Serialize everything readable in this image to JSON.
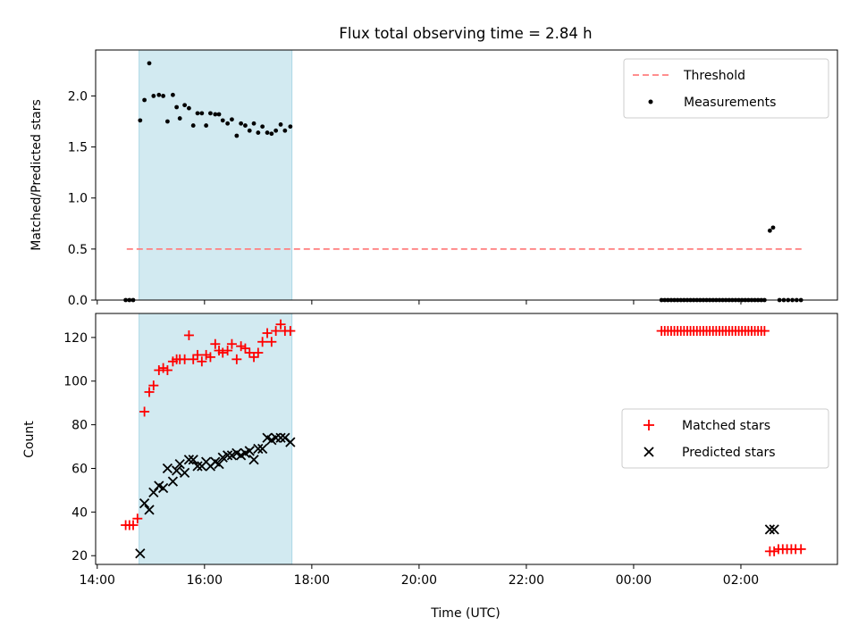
{
  "chart_data": [
    {
      "type": "scatter",
      "title": "Flux total observing time = 2.84 h",
      "xlabel": "",
      "ylabel": "Matched/Predicted stars",
      "x_unit": "hours since 00:00 of first day",
      "xlim": [
        13.97,
        27.8
      ],
      "ylim": [
        0,
        2.45
      ],
      "yticks": [
        "0.0",
        "0.5",
        "1.0",
        "1.5",
        "2.0"
      ],
      "ytick_values": [
        0,
        0.5,
        1.0,
        1.5,
        2.0
      ],
      "span": [
        14.78,
        17.63
      ],
      "span_color": "#add8e6",
      "legend_position": "upper-right",
      "threshold": {
        "name": "Threshold",
        "y": 0.5,
        "x_range": [
          14.55,
          27.15
        ],
        "color": "#ff7f7f"
      },
      "series": [
        {
          "name": "Measurements",
          "color": "#000000",
          "points": [
            [
              14.53,
              0
            ],
            [
              14.6,
              0
            ],
            [
              14.67,
              0
            ],
            [
              14.8,
              1.76
            ],
            [
              14.88,
              1.96
            ],
            [
              14.97,
              2.32
            ],
            [
              15.05,
              2.0
            ],
            [
              15.15,
              2.01
            ],
            [
              15.23,
              2.0
            ],
            [
              15.31,
              1.75
            ],
            [
              15.41,
              2.01
            ],
            [
              15.48,
              1.89
            ],
            [
              15.54,
              1.78
            ],
            [
              15.63,
              1.91
            ],
            [
              15.71,
              1.88
            ],
            [
              15.79,
              1.71
            ],
            [
              15.87,
              1.83
            ],
            [
              15.95,
              1.83
            ],
            [
              16.03,
              1.71
            ],
            [
              16.11,
              1.83
            ],
            [
              16.2,
              1.82
            ],
            [
              16.27,
              1.82
            ],
            [
              16.34,
              1.76
            ],
            [
              16.43,
              1.73
            ],
            [
              16.51,
              1.77
            ],
            [
              16.6,
              1.61
            ],
            [
              16.68,
              1.73
            ],
            [
              16.76,
              1.71
            ],
            [
              16.84,
              1.66
            ],
            [
              16.92,
              1.73
            ],
            [
              17.0,
              1.64
            ],
            [
              17.08,
              1.7
            ],
            [
              17.17,
              1.64
            ],
            [
              17.25,
              1.63
            ],
            [
              17.33,
              1.66
            ],
            [
              17.42,
              1.72
            ],
            [
              17.5,
              1.66
            ],
            [
              17.6,
              1.7
            ],
            [
              24.52,
              0
            ],
            [
              24.58,
              0
            ],
            [
              24.64,
              0
            ],
            [
              24.7,
              0
            ],
            [
              24.76,
              0
            ],
            [
              24.82,
              0
            ],
            [
              24.88,
              0
            ],
            [
              24.94,
              0
            ],
            [
              25.0,
              0
            ],
            [
              25.06,
              0
            ],
            [
              25.12,
              0
            ],
            [
              25.18,
              0
            ],
            [
              25.24,
              0
            ],
            [
              25.3,
              0
            ],
            [
              25.36,
              0
            ],
            [
              25.42,
              0
            ],
            [
              25.48,
              0
            ],
            [
              25.54,
              0
            ],
            [
              25.6,
              0
            ],
            [
              25.66,
              0
            ],
            [
              25.72,
              0
            ],
            [
              25.78,
              0
            ],
            [
              25.84,
              0
            ],
            [
              25.9,
              0
            ],
            [
              25.96,
              0
            ],
            [
              26.02,
              0
            ],
            [
              26.08,
              0
            ],
            [
              26.14,
              0
            ],
            [
              26.2,
              0
            ],
            [
              26.26,
              0
            ],
            [
              26.32,
              0
            ],
            [
              26.38,
              0
            ],
            [
              26.44,
              0
            ],
            [
              26.54,
              0.68
            ],
            [
              26.6,
              0.71
            ],
            [
              26.72,
              0
            ],
            [
              26.8,
              0
            ],
            [
              26.88,
              0
            ],
            [
              26.96,
              0
            ],
            [
              27.04,
              0
            ],
            [
              27.12,
              0
            ]
          ]
        }
      ]
    },
    {
      "type": "scatter",
      "title": "",
      "xlabel": "Time (UTC)",
      "ylabel": "Count",
      "x_unit": "hours since 00:00 of first day",
      "xlim": [
        13.97,
        27.8
      ],
      "ylim": [
        16,
        131
      ],
      "yticks": [
        "20",
        "40",
        "60",
        "80",
        "100",
        "120"
      ],
      "ytick_values": [
        20,
        40,
        60,
        80,
        100,
        120
      ],
      "xticks": [
        "14:00",
        "16:00",
        "18:00",
        "20:00",
        "22:00",
        "00:00",
        "02:00"
      ],
      "xtick_values": [
        14,
        16,
        18,
        20,
        22,
        24,
        26
      ],
      "span": [
        14.78,
        17.63
      ],
      "span_color": "#add8e6",
      "legend_position": "center-right",
      "series": [
        {
          "name": "Matched stars",
          "marker": "plus",
          "color": "#ff0000",
          "points": [
            [
              14.53,
              34
            ],
            [
              14.6,
              34
            ],
            [
              14.67,
              34
            ],
            [
              14.75,
              37
            ],
            [
              14.88,
              86
            ],
            [
              14.97,
              95
            ],
            [
              15.05,
              98
            ],
            [
              15.15,
              105
            ],
            [
              15.23,
              106
            ],
            [
              15.31,
              105
            ],
            [
              15.41,
              109
            ],
            [
              15.48,
              110
            ],
            [
              15.54,
              110
            ],
            [
              15.63,
              110
            ],
            [
              15.71,
              121
            ],
            [
              15.79,
              110
            ],
            [
              15.87,
              112
            ],
            [
              15.95,
              109
            ],
            [
              16.03,
              112
            ],
            [
              16.11,
              111
            ],
            [
              16.2,
              117
            ],
            [
              16.27,
              114
            ],
            [
              16.34,
              113
            ],
            [
              16.43,
              114
            ],
            [
              16.51,
              117
            ],
            [
              16.6,
              110
            ],
            [
              16.68,
              116
            ],
            [
              16.76,
              115
            ],
            [
              16.84,
              113
            ],
            [
              16.92,
              111
            ],
            [
              17.0,
              113
            ],
            [
              17.08,
              118
            ],
            [
              17.17,
              122
            ],
            [
              17.25,
              118
            ],
            [
              17.33,
              123
            ],
            [
              17.42,
              126
            ],
            [
              17.5,
              123
            ],
            [
              17.6,
              123
            ],
            [
              24.52,
              123
            ],
            [
              24.58,
              123
            ],
            [
              24.64,
              123
            ],
            [
              24.7,
              123
            ],
            [
              24.76,
              123
            ],
            [
              24.82,
              123
            ],
            [
              24.88,
              123
            ],
            [
              24.94,
              123
            ],
            [
              25.0,
              123
            ],
            [
              25.06,
              123
            ],
            [
              25.12,
              123
            ],
            [
              25.18,
              123
            ],
            [
              25.24,
              123
            ],
            [
              25.3,
              123
            ],
            [
              25.36,
              123
            ],
            [
              25.42,
              123
            ],
            [
              25.48,
              123
            ],
            [
              25.54,
              123
            ],
            [
              25.6,
              123
            ],
            [
              25.66,
              123
            ],
            [
              25.72,
              123
            ],
            [
              25.78,
              123
            ],
            [
              25.84,
              123
            ],
            [
              25.9,
              123
            ],
            [
              25.96,
              123
            ],
            [
              26.02,
              123
            ],
            [
              26.08,
              123
            ],
            [
              26.14,
              123
            ],
            [
              26.2,
              123
            ],
            [
              26.26,
              123
            ],
            [
              26.32,
              123
            ],
            [
              26.38,
              123
            ],
            [
              26.44,
              123
            ],
            [
              26.54,
              22
            ],
            [
              26.62,
              22
            ],
            [
              26.7,
              23
            ],
            [
              26.78,
              23
            ],
            [
              26.86,
              23
            ],
            [
              26.94,
              23
            ],
            [
              27.02,
              23
            ],
            [
              27.12,
              23
            ]
          ]
        },
        {
          "name": "Predicted stars",
          "marker": "x",
          "color": "#000000",
          "points": [
            [
              14.8,
              21
            ],
            [
              14.88,
              44
            ],
            [
              14.97,
              41
            ],
            [
              15.05,
              49
            ],
            [
              15.15,
              52
            ],
            [
              15.23,
              51
            ],
            [
              15.31,
              60
            ],
            [
              15.41,
              54
            ],
            [
              15.48,
              59
            ],
            [
              15.54,
              62
            ],
            [
              15.63,
              58
            ],
            [
              15.71,
              64
            ],
            [
              15.79,
              64
            ],
            [
              15.87,
              61
            ],
            [
              15.95,
              61
            ],
            [
              16.03,
              63
            ],
            [
              16.11,
              61
            ],
            [
              16.2,
              63
            ],
            [
              16.27,
              62
            ],
            [
              16.34,
              65
            ],
            [
              16.43,
              66
            ],
            [
              16.51,
              66
            ],
            [
              16.6,
              67
            ],
            [
              16.68,
              66
            ],
            [
              16.76,
              67
            ],
            [
              16.84,
              68
            ],
            [
              16.92,
              64
            ],
            [
              17.0,
              69
            ],
            [
              17.08,
              69
            ],
            [
              17.17,
              74
            ],
            [
              17.25,
              73
            ],
            [
              17.33,
              74
            ],
            [
              17.42,
              74
            ],
            [
              17.5,
              74
            ],
            [
              17.6,
              72
            ],
            [
              26.54,
              32
            ],
            [
              26.62,
              32
            ]
          ]
        }
      ]
    }
  ]
}
